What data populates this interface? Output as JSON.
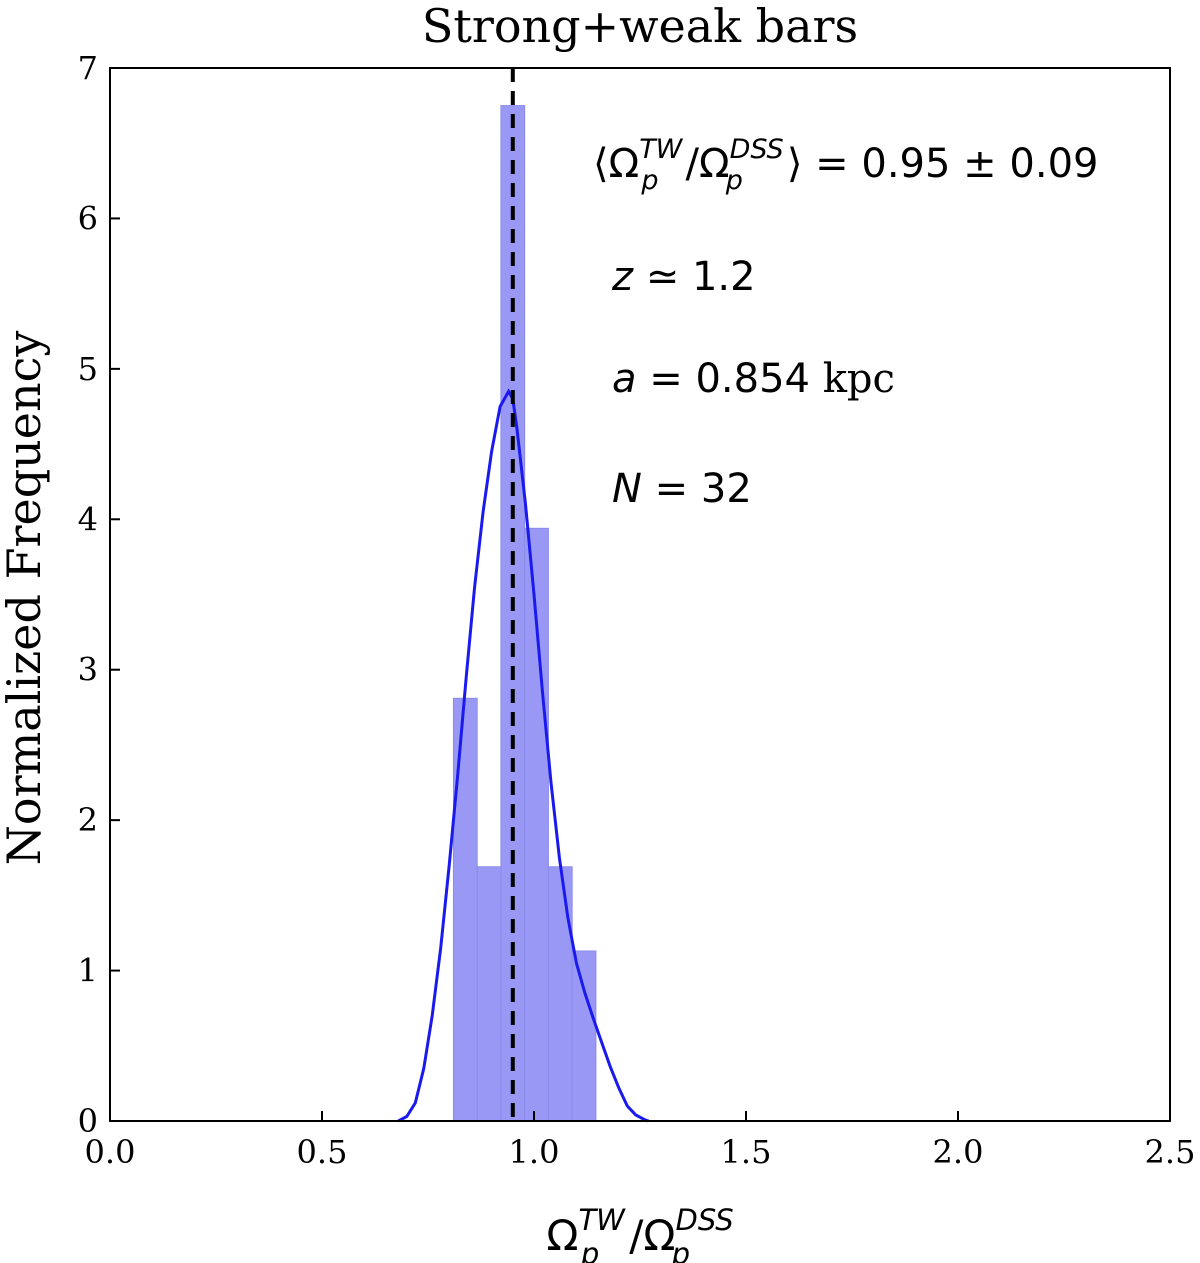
{
  "chart_data": {
    "type": "bar",
    "title": "Strong+weak bars",
    "ylabel": "Normalized Frequency",
    "xlabel": {
      "base": "Ω",
      "num_sub": "p",
      "num_sup": "TW",
      "slash": "/",
      "den_sub": "p",
      "den_sup": "DSS"
    },
    "xlim": [
      0.0,
      2.5
    ],
    "ylim": [
      0,
      7
    ],
    "x_ticks": [
      0.0,
      0.5,
      1.0,
      1.5,
      2.0,
      2.5
    ],
    "x_tick_labels": [
      "0.0",
      "0.5",
      "1.0",
      "1.5",
      "2.0",
      "2.5"
    ],
    "y_ticks": [
      0,
      1,
      2,
      3,
      4,
      5,
      6,
      7
    ],
    "y_tick_labels": [
      "0",
      "1",
      "2",
      "3",
      "4",
      "5",
      "6",
      "7"
    ],
    "histogram": {
      "bin_edges": [
        0.81,
        0.866,
        0.922,
        0.978,
        1.034,
        1.09,
        1.146
      ],
      "values": [
        2.81,
        1.69,
        6.75,
        3.94,
        1.69,
        1.13
      ],
      "color": "#9999f5"
    },
    "kde": {
      "color": "#1a1aee",
      "x": [
        0.68,
        0.7,
        0.72,
        0.74,
        0.76,
        0.78,
        0.8,
        0.82,
        0.84,
        0.86,
        0.88,
        0.9,
        0.92,
        0.94,
        0.95,
        0.96,
        0.98,
        1.0,
        1.02,
        1.04,
        1.06,
        1.08,
        1.1,
        1.12,
        1.14,
        1.16,
        1.18,
        1.2,
        1.22,
        1.24,
        1.26,
        1.27
      ],
      "y": [
        0.0,
        0.03,
        0.12,
        0.35,
        0.7,
        1.15,
        1.7,
        2.3,
        2.95,
        3.55,
        4.05,
        4.45,
        4.75,
        4.85,
        4.8,
        4.6,
        4.1,
        3.5,
        2.85,
        2.25,
        1.75,
        1.35,
        1.05,
        0.85,
        0.68,
        0.52,
        0.36,
        0.22,
        0.1,
        0.04,
        0.01,
        0.0
      ]
    },
    "mean_line": {
      "x": 0.95,
      "style": "dashed",
      "color": "#000000"
    },
    "grid": false,
    "annotations": [
      {
        "id": "mean-ratio",
        "prefix": "⟨",
        "base1": "Ω",
        "sub1": "p",
        "sup1": "TW",
        "slash": "/",
        "base2": "Ω",
        "sub2": "p",
        "sup2": "DSS",
        "suffix": "⟩ = 0.95 ± 0.09"
      },
      {
        "id": "redshift",
        "var": "z",
        "text": " ≃ 1.2"
      },
      {
        "id": "scale",
        "var": "a",
        "text": " = 0.854 ",
        "unit": "kpc"
      },
      {
        "id": "count",
        "var": "N",
        "text": " = 32"
      }
    ]
  }
}
